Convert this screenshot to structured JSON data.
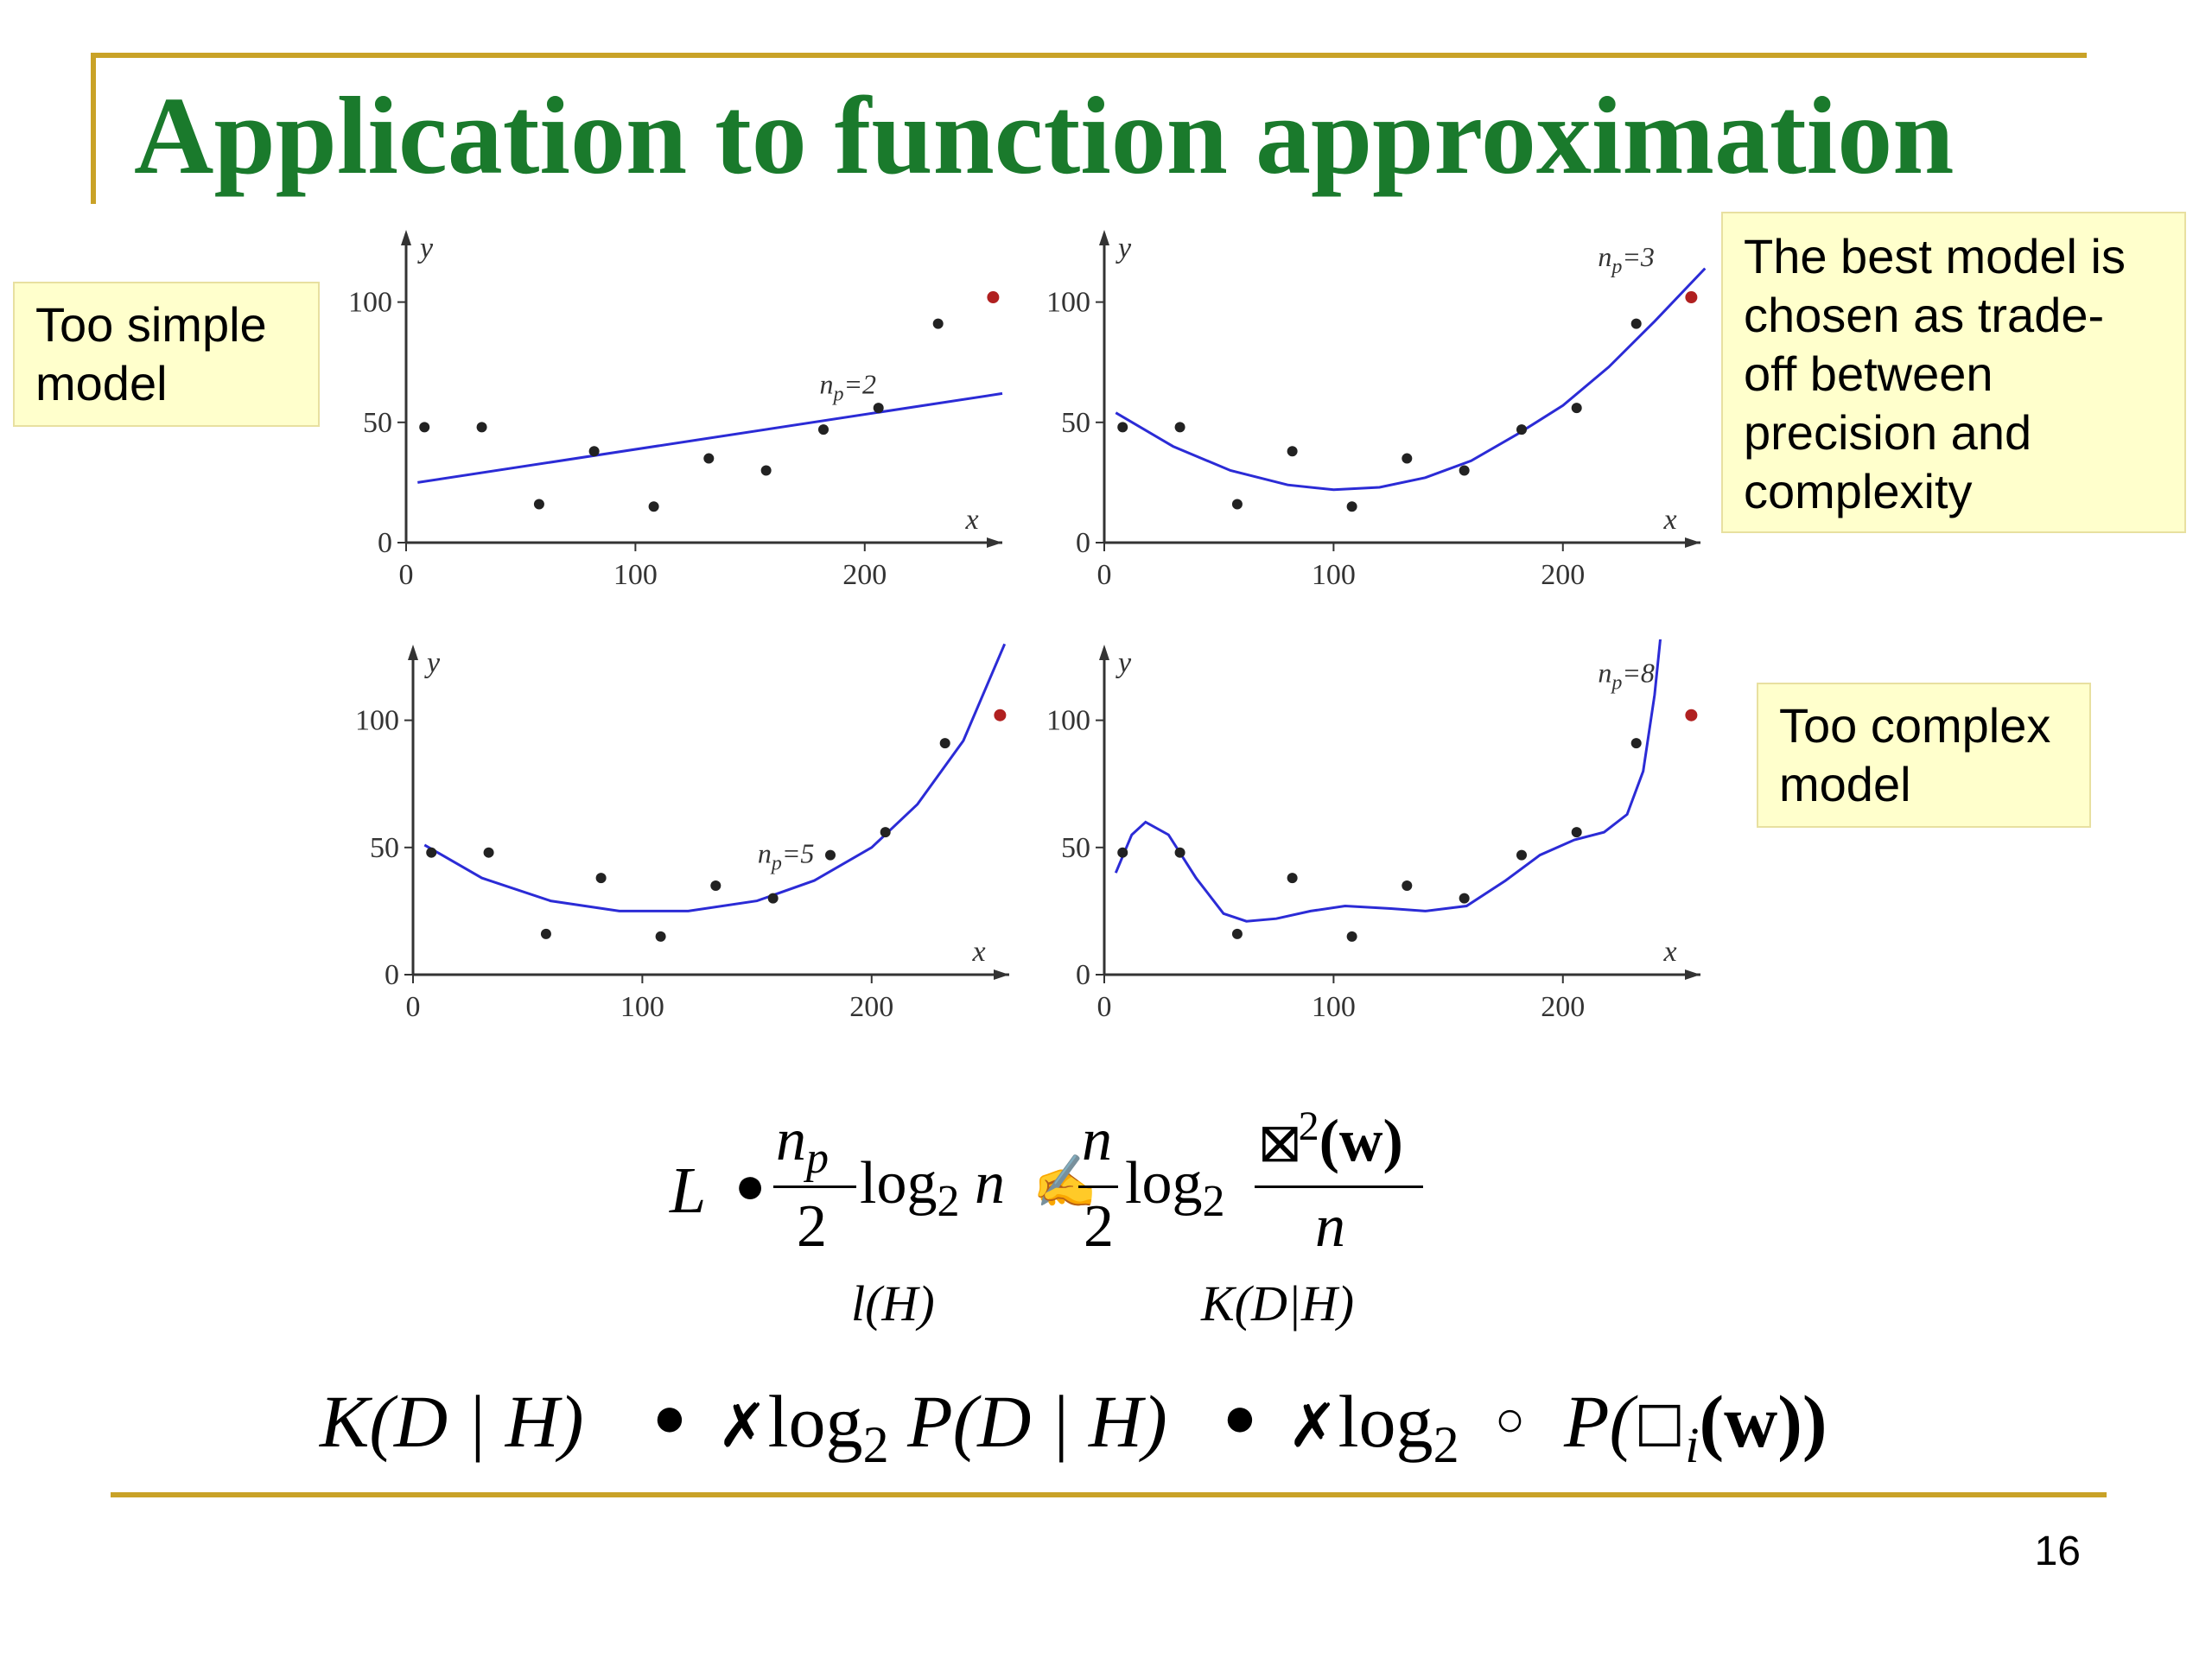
{
  "slide": {
    "title": "Application to function approximation",
    "page_number": "16"
  },
  "notes": {
    "simple": [
      "Too simple",
      "model"
    ],
    "best": [
      "The best model is",
      "chosen as trade-",
      "off between",
      "precision and",
      "complexity"
    ],
    "complex": [
      "Too complex",
      "model"
    ]
  },
  "chart_data": [
    {
      "type": "scatter",
      "annotation": "n_p=2",
      "xlabel": "x",
      "ylabel": "y",
      "xlim": [
        0,
        260
      ],
      "ylim": [
        0,
        125
      ],
      "xticks": [
        0,
        100,
        200
      ],
      "yticks": [
        0,
        50,
        100
      ],
      "points": [
        [
          8,
          48
        ],
        [
          33,
          48
        ],
        [
          58,
          16
        ],
        [
          82,
          38
        ],
        [
          108,
          15
        ],
        [
          132,
          35
        ],
        [
          157,
          30
        ],
        [
          182,
          47
        ],
        [
          206,
          56
        ],
        [
          232,
          91
        ]
      ],
      "outlier": [
        256,
        102
      ],
      "fit_curve": [
        [
          5,
          25
        ],
        [
          260,
          62
        ]
      ]
    },
    {
      "type": "scatter",
      "annotation": "n_p=3",
      "xlabel": "x",
      "ylabel": "y",
      "xlim": [
        0,
        260
      ],
      "ylim": [
        0,
        125
      ],
      "xticks": [
        0,
        100,
        200
      ],
      "yticks": [
        0,
        50,
        100
      ],
      "points": [
        [
          8,
          48
        ],
        [
          33,
          48
        ],
        [
          58,
          16
        ],
        [
          82,
          38
        ],
        [
          108,
          15
        ],
        [
          132,
          35
        ],
        [
          157,
          30
        ],
        [
          182,
          47
        ],
        [
          206,
          56
        ],
        [
          232,
          91
        ]
      ],
      "outlier": [
        256,
        102
      ],
      "fit_curve": [
        [
          5,
          54
        ],
        [
          30,
          40
        ],
        [
          55,
          30
        ],
        [
          80,
          24
        ],
        [
          100,
          22
        ],
        [
          120,
          23
        ],
        [
          140,
          27
        ],
        [
          160,
          34
        ],
        [
          180,
          45
        ],
        [
          200,
          57
        ],
        [
          220,
          73
        ],
        [
          240,
          92
        ],
        [
          262,
          114
        ]
      ]
    },
    {
      "type": "scatter",
      "annotation": "n_p=5",
      "xlabel": "x",
      "ylabel": "y",
      "xlim": [
        0,
        260
      ],
      "ylim": [
        0,
        125
      ],
      "xticks": [
        0,
        100,
        200
      ],
      "yticks": [
        0,
        50,
        100
      ],
      "points": [
        [
          8,
          48
        ],
        [
          33,
          48
        ],
        [
          58,
          16
        ],
        [
          82,
          38
        ],
        [
          108,
          15
        ],
        [
          132,
          35
        ],
        [
          157,
          30
        ],
        [
          182,
          47
        ],
        [
          206,
          56
        ],
        [
          232,
          91
        ]
      ],
      "outlier": [
        256,
        102
      ],
      "fit_curve": [
        [
          5,
          51
        ],
        [
          30,
          38
        ],
        [
          60,
          29
        ],
        [
          90,
          25
        ],
        [
          120,
          25
        ],
        [
          150,
          29
        ],
        [
          175,
          37
        ],
        [
          200,
          50
        ],
        [
          220,
          67
        ],
        [
          240,
          92
        ],
        [
          258,
          130
        ]
      ]
    },
    {
      "type": "scatter",
      "annotation": "n_p=8",
      "xlabel": "x",
      "ylabel": "y",
      "xlim": [
        0,
        260
      ],
      "ylim": [
        0,
        125
      ],
      "xticks": [
        0,
        100,
        200
      ],
      "yticks": [
        0,
        50,
        100
      ],
      "points": [
        [
          8,
          48
        ],
        [
          33,
          48
        ],
        [
          58,
          16
        ],
        [
          82,
          38
        ],
        [
          108,
          15
        ],
        [
          132,
          35
        ],
        [
          157,
          30
        ],
        [
          182,
          47
        ],
        [
          206,
          56
        ],
        [
          232,
          91
        ]
      ],
      "outlier": [
        256,
        102
      ],
      "fit_curve": [
        [
          5,
          40
        ],
        [
          12,
          55
        ],
        [
          18,
          60
        ],
        [
          28,
          55
        ],
        [
          40,
          38
        ],
        [
          52,
          24
        ],
        [
          62,
          21
        ],
        [
          75,
          22
        ],
        [
          90,
          25
        ],
        [
          105,
          27
        ],
        [
          125,
          26
        ],
        [
          140,
          25
        ],
        [
          158,
          27
        ],
        [
          175,
          37
        ],
        [
          190,
          47
        ],
        [
          205,
          53
        ],
        [
          218,
          56
        ],
        [
          228,
          63
        ],
        [
          235,
          80
        ],
        [
          240,
          110
        ],
        [
          244,
          145
        ]
      ]
    }
  ],
  "formula1": {
    "lhs": "L",
    "op1": "●",
    "frac1_num": "n",
    "frac1_num_sub": "p",
    "frac1_den": "2",
    "log1": "log",
    "log1_sub": "2",
    "log1_arg": "n",
    "op2": "✍",
    "frac2_num": "n",
    "frac2_den": "2",
    "log2": "log",
    "log2_sub": "2",
    "frac3_num": "(w)",
    "frac3_num_sup": "2",
    "frac3_sym": "⛝",
    "frac3_den": "n",
    "label1": "l(H)",
    "label2": "K(D|H)"
  },
  "formula2": {
    "lhs": "K(D | H)",
    "op1": "●",
    "part1_prefix": "✗",
    "part1_log": "log",
    "part1_sub": "2",
    "part1_arg": "P(D | H)",
    "op2": "●",
    "part2_prefix": "✗",
    "part2_log": "log",
    "part2_sub": "2",
    "part2_op": "○",
    "part2_P": "P(",
    "part2_sym": "☐",
    "part2_sym_sub": "i",
    "part2_arg": "(w))"
  }
}
